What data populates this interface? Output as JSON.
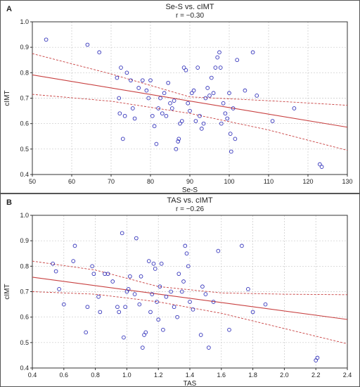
{
  "chart_data": [
    {
      "type": "scatter",
      "panel_label": "A",
      "title": "Se-S vs. cIMT",
      "subtitle": "r = −0.30",
      "xlabel": "Se-S",
      "ylabel": "cIMT",
      "xlim": [
        50,
        130
      ],
      "ylim": [
        0.4,
        1.0
      ],
      "xticks": [
        "50",
        "60",
        "70",
        "80",
        "90",
        "100",
        "110",
        "120",
        "130"
      ],
      "yticks": [
        "0.4",
        "0.5",
        "0.6",
        "0.7",
        "0.8",
        "0.9",
        "1.0"
      ],
      "grid": true,
      "regression": {
        "intercept": 0.92,
        "slope": -0.00257
      },
      "confidence_band": {
        "upper": [
          [
            50,
            0.875
          ],
          [
            70,
            0.795
          ],
          [
            90,
            0.705
          ],
          [
            110,
            0.69
          ],
          [
            130,
            0.672
          ]
        ],
        "lower": [
          [
            50,
            0.715
          ],
          [
            70,
            0.688
          ],
          [
            90,
            0.64
          ],
          [
            110,
            0.575
          ],
          [
            130,
            0.495
          ]
        ]
      },
      "color": "#3333bb",
      "line_color": "#c84040",
      "points": [
        [
          53.5,
          0.93
        ],
        [
          64,
          0.91
        ],
        [
          67,
          0.88
        ],
        [
          71.5,
          0.78
        ],
        [
          72,
          0.7
        ],
        [
          72.2,
          0.64
        ],
        [
          72.5,
          0.82
        ],
        [
          73,
          0.54
        ],
        [
          73.5,
          0.63
        ],
        [
          74,
          0.8
        ],
        [
          75,
          0.77
        ],
        [
          75.5,
          0.66
        ],
        [
          76,
          0.62
        ],
        [
          77,
          0.74
        ],
        [
          78,
          0.77
        ],
        [
          79,
          0.73
        ],
        [
          79.5,
          0.7
        ],
        [
          80,
          0.77
        ],
        [
          80.5,
          0.63
        ],
        [
          81,
          0.59
        ],
        [
          81.5,
          0.52
        ],
        [
          82,
          0.66
        ],
        [
          82.5,
          0.7
        ],
        [
          83,
          0.64
        ],
        [
          83.5,
          0.72
        ],
        [
          84,
          0.63
        ],
        [
          84.5,
          0.76
        ],
        [
          85,
          0.68
        ],
        [
          85.5,
          0.66
        ],
        [
          86,
          0.69
        ],
        [
          86.5,
          0.5
        ],
        [
          87,
          0.53
        ],
        [
          87.2,
          0.54
        ],
        [
          87.5,
          0.6
        ],
        [
          88,
          0.61
        ],
        [
          88.5,
          0.82
        ],
        [
          89,
          0.81
        ],
        [
          89.5,
          0.68
        ],
        [
          90,
          0.65
        ],
        [
          90.5,
          0.72
        ],
        [
          91,
          0.73
        ],
        [
          91.5,
          0.61
        ],
        [
          92,
          0.82
        ],
        [
          92.5,
          0.63
        ],
        [
          93,
          0.58
        ],
        [
          93.5,
          0.6
        ],
        [
          94,
          0.7
        ],
        [
          94.5,
          0.74
        ],
        [
          95,
          0.71
        ],
        [
          95.5,
          0.78
        ],
        [
          96,
          0.72
        ],
        [
          96.5,
          0.82
        ],
        [
          97,
          0.86
        ],
        [
          97.5,
          0.88
        ],
        [
          97.8,
          0.82
        ],
        [
          98,
          0.6
        ],
        [
          98.5,
          0.68
        ],
        [
          99,
          0.64
        ],
        [
          99.5,
          0.62
        ],
        [
          100,
          0.72
        ],
        [
          100.3,
          0.56
        ],
        [
          100.5,
          0.49
        ],
        [
          101,
          0.66
        ],
        [
          101.5,
          0.54
        ],
        [
          102,
          0.85
        ],
        [
          104,
          0.73
        ],
        [
          106,
          0.88
        ],
        [
          107,
          0.71
        ],
        [
          111,
          0.61
        ],
        [
          116.5,
          0.66
        ],
        [
          123,
          0.44
        ],
        [
          123.5,
          0.43
        ]
      ]
    },
    {
      "type": "scatter",
      "panel_label": "B",
      "title": "TAS vs. cIMT",
      "subtitle": "r = −0.26",
      "xlabel": "TAS",
      "ylabel": "cIMT",
      "xlim": [
        0.4,
        2.4
      ],
      "ylim": [
        0.4,
        1.0
      ],
      "xticks": [
        "0.4",
        "0.6",
        "0.8",
        "1.0",
        "1.2",
        "1.4",
        "1.6",
        "1.8",
        "2.0",
        "2.2",
        "2.4"
      ],
      "yticks": [
        "0.4",
        "0.5",
        "0.6",
        "0.7",
        "0.8",
        "0.9",
        "1.0"
      ],
      "grid": true,
      "regression": {
        "intercept": 0.79,
        "slope": -0.083
      },
      "confidence_band": {
        "upper": [
          [
            0.4,
            0.82
          ],
          [
            0.8,
            0.785
          ],
          [
            1.2,
            0.72
          ],
          [
            1.6,
            0.695
          ],
          [
            2.0,
            0.69
          ],
          [
            2.4,
            0.688
          ]
        ],
        "lower": [
          [
            0.4,
            0.7
          ],
          [
            0.8,
            0.69
          ],
          [
            1.2,
            0.66
          ],
          [
            1.6,
            0.615
          ],
          [
            2.0,
            0.555
          ],
          [
            2.4,
            0.495
          ]
        ]
      },
      "color": "#3333bb",
      "line_color": "#c84040",
      "points": [
        [
          0.53,
          0.81
        ],
        [
          0.55,
          0.78
        ],
        [
          0.57,
          0.71
        ],
        [
          0.6,
          0.65
        ],
        [
          0.66,
          0.82
        ],
        [
          0.67,
          0.88
        ],
        [
          0.74,
          0.54
        ],
        [
          0.75,
          0.64
        ],
        [
          0.78,
          0.8
        ],
        [
          0.79,
          0.77
        ],
        [
          0.82,
          0.68
        ],
        [
          0.83,
          0.62
        ],
        [
          0.86,
          0.77
        ],
        [
          0.88,
          0.77
        ],
        [
          0.91,
          0.74
        ],
        [
          0.94,
          0.64
        ],
        [
          0.95,
          0.62
        ],
        [
          0.97,
          0.93
        ],
        [
          0.98,
          0.52
        ],
        [
          0.99,
          0.64
        ],
        [
          1.0,
          0.7
        ],
        [
          1.01,
          0.71
        ],
        [
          1.02,
          0.76
        ],
        [
          1.05,
          0.69
        ],
        [
          1.06,
          0.91
        ],
        [
          1.08,
          0.65
        ],
        [
          1.09,
          0.76
        ],
        [
          1.1,
          0.48
        ],
        [
          1.11,
          0.53
        ],
        [
          1.12,
          0.54
        ],
        [
          1.14,
          0.82
        ],
        [
          1.15,
          0.62
        ],
        [
          1.16,
          0.69
        ],
        [
          1.17,
          0.81
        ],
        [
          1.18,
          0.79
        ],
        [
          1.19,
          0.66
        ],
        [
          1.2,
          0.59
        ],
        [
          1.21,
          0.72
        ],
        [
          1.22,
          0.81
        ],
        [
          1.23,
          0.55
        ],
        [
          1.25,
          0.68
        ],
        [
          1.28,
          0.7
        ],
        [
          1.3,
          0.64
        ],
        [
          1.32,
          0.6
        ],
        [
          1.33,
          0.77
        ],
        [
          1.35,
          0.7
        ],
        [
          1.36,
          0.74
        ],
        [
          1.37,
          0.88
        ],
        [
          1.38,
          0.85
        ],
        [
          1.39,
          0.8
        ],
        [
          1.4,
          0.66
        ],
        [
          1.42,
          0.63
        ],
        [
          1.47,
          0.53
        ],
        [
          1.48,
          0.72
        ],
        [
          1.5,
          0.69
        ],
        [
          1.52,
          0.48
        ],
        [
          1.55,
          0.66
        ],
        [
          1.58,
          0.86
        ],
        [
          1.65,
          0.55
        ],
        [
          1.73,
          0.88
        ],
        [
          1.77,
          0.71
        ],
        [
          1.8,
          0.62
        ],
        [
          1.88,
          0.65
        ],
        [
          2.2,
          0.43
        ],
        [
          2.21,
          0.44
        ]
      ]
    }
  ]
}
